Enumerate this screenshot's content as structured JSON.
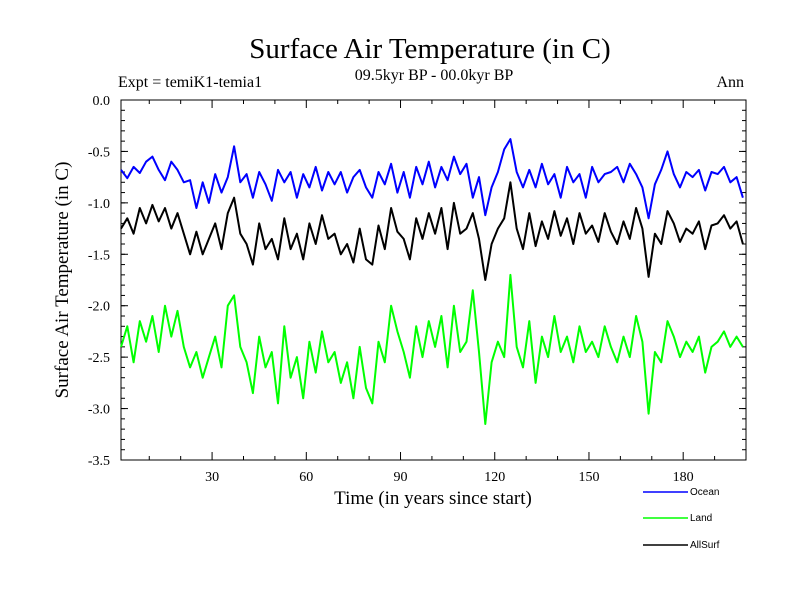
{
  "chart_data": {
    "type": "line",
    "title": "Surface Air Temperature (in C)",
    "subtitle": "09.5kyr BP - 00.0kyr BP",
    "experiment": "Expt = temiK1-temia1",
    "season": "Ann",
    "xlabel": "Time (in years since start)",
    "ylabel": "Surface Air Temperature (in C)",
    "xlim": [
      1,
      200
    ],
    "ylim": [
      -3.5,
      0.0
    ],
    "xticks": [
      30,
      60,
      90,
      120,
      150,
      180
    ],
    "xtick_labels": [
      "30",
      "60",
      "90",
      "120",
      "150",
      "180"
    ],
    "yticks": [
      0.0,
      -0.5,
      -1.0,
      -1.5,
      -2.0,
      -2.5,
      -3.0,
      -3.5
    ],
    "ytick_labels": [
      "0.0",
      "-0.5",
      "-1.0",
      "-1.5",
      "-2.0",
      "-2.5",
      "-3.0",
      "-3.5"
    ],
    "grid": false,
    "legend_position": "bottom-right",
    "series": [
      {
        "name": "Ocean",
        "color": "#0000ff",
        "x": [
          1,
          3,
          5,
          7,
          9,
          11,
          13,
          15,
          17,
          19,
          21,
          23,
          25,
          27,
          29,
          31,
          33,
          35,
          37,
          39,
          41,
          43,
          45,
          47,
          49,
          51,
          53,
          55,
          57,
          59,
          61,
          63,
          65,
          67,
          69,
          71,
          73,
          75,
          77,
          79,
          81,
          83,
          85,
          87,
          89,
          91,
          93,
          95,
          97,
          99,
          101,
          103,
          105,
          107,
          109,
          111,
          113,
          115,
          117,
          119,
          121,
          123,
          125,
          127,
          129,
          131,
          133,
          135,
          137,
          139,
          141,
          143,
          145,
          147,
          149,
          151,
          153,
          155,
          157,
          159,
          161,
          163,
          165,
          167,
          169,
          171,
          173,
          175,
          177,
          179,
          181,
          183,
          185,
          187,
          189,
          191,
          193,
          195,
          197,
          199
        ],
        "values": [
          -0.68,
          -0.76,
          -0.65,
          -0.71,
          -0.6,
          -0.55,
          -0.68,
          -0.78,
          -0.6,
          -0.68,
          -0.8,
          -0.78,
          -1.05,
          -0.8,
          -1.0,
          -0.72,
          -0.9,
          -0.75,
          -0.45,
          -0.8,
          -0.72,
          -0.95,
          -0.7,
          -0.82,
          -0.98,
          -0.68,
          -0.8,
          -0.7,
          -0.95,
          -0.72,
          -0.85,
          -0.65,
          -0.88,
          -0.7,
          -0.82,
          -0.7,
          -0.9,
          -0.75,
          -0.68,
          -0.85,
          -0.95,
          -0.7,
          -0.82,
          -0.62,
          -0.9,
          -0.7,
          -0.95,
          -0.65,
          -0.82,
          -0.6,
          -0.85,
          -0.65,
          -0.78,
          -0.55,
          -0.72,
          -0.62,
          -0.95,
          -0.75,
          -1.12,
          -0.85,
          -0.7,
          -0.48,
          -0.38,
          -0.7,
          -0.85,
          -0.68,
          -0.85,
          -0.62,
          -0.82,
          -0.72,
          -0.95,
          -0.65,
          -0.8,
          -0.72,
          -0.95,
          -0.65,
          -0.8,
          -0.72,
          -0.7,
          -0.65,
          -0.8,
          -0.62,
          -0.72,
          -0.85,
          -1.15,
          -0.82,
          -0.68,
          -0.5,
          -0.72,
          -0.85,
          -0.7,
          -0.75,
          -0.68,
          -0.88,
          -0.7,
          -0.72,
          -0.65,
          -0.8,
          -0.75,
          -0.95
        ]
      },
      {
        "name": "Land",
        "color": "#00ff00",
        "x": [
          1,
          3,
          5,
          7,
          9,
          11,
          13,
          15,
          17,
          19,
          21,
          23,
          25,
          27,
          29,
          31,
          33,
          35,
          37,
          39,
          41,
          43,
          45,
          47,
          49,
          51,
          53,
          55,
          57,
          59,
          61,
          63,
          65,
          67,
          69,
          71,
          73,
          75,
          77,
          79,
          81,
          83,
          85,
          87,
          89,
          91,
          93,
          95,
          97,
          99,
          101,
          103,
          105,
          107,
          109,
          111,
          113,
          115,
          117,
          119,
          121,
          123,
          125,
          127,
          129,
          131,
          133,
          135,
          137,
          139,
          141,
          143,
          145,
          147,
          149,
          151,
          153,
          155,
          157,
          159,
          161,
          163,
          165,
          167,
          169,
          171,
          173,
          175,
          177,
          179,
          181,
          183,
          185,
          187,
          189,
          191,
          193,
          195,
          197,
          199
        ],
        "values": [
          -2.4,
          -2.2,
          -2.55,
          -2.15,
          -2.35,
          -2.1,
          -2.45,
          -2.0,
          -2.3,
          -2.05,
          -2.4,
          -2.6,
          -2.45,
          -2.7,
          -2.5,
          -2.3,
          -2.6,
          -2.0,
          -1.9,
          -2.4,
          -2.55,
          -2.85,
          -2.3,
          -2.6,
          -2.45,
          -2.95,
          -2.2,
          -2.7,
          -2.5,
          -2.9,
          -2.35,
          -2.65,
          -2.25,
          -2.55,
          -2.45,
          -2.75,
          -2.55,
          -2.9,
          -2.4,
          -2.8,
          -2.95,
          -2.35,
          -2.55,
          -2.0,
          -2.25,
          -2.45,
          -2.7,
          -2.2,
          -2.5,
          -2.15,
          -2.4,
          -2.1,
          -2.6,
          -2.0,
          -2.45,
          -2.35,
          -1.85,
          -2.45,
          -3.15,
          -2.55,
          -2.35,
          -2.5,
          -1.7,
          -2.4,
          -2.6,
          -2.15,
          -2.75,
          -2.3,
          -2.5,
          -2.1,
          -2.45,
          -2.3,
          -2.55,
          -2.2,
          -2.45,
          -2.35,
          -2.5,
          -2.2,
          -2.4,
          -2.55,
          -2.3,
          -2.5,
          -2.1,
          -2.35,
          -3.05,
          -2.45,
          -2.55,
          -2.15,
          -2.3,
          -2.5,
          -2.35,
          -2.45,
          -2.3,
          -2.65,
          -2.4,
          -2.35,
          -2.25,
          -2.4,
          -2.3,
          -2.4
        ]
      },
      {
        "name": "AllSurf",
        "color": "#000000",
        "x": [
          1,
          3,
          5,
          7,
          9,
          11,
          13,
          15,
          17,
          19,
          21,
          23,
          25,
          27,
          29,
          31,
          33,
          35,
          37,
          39,
          41,
          43,
          45,
          47,
          49,
          51,
          53,
          55,
          57,
          59,
          61,
          63,
          65,
          67,
          69,
          71,
          73,
          75,
          77,
          79,
          81,
          83,
          85,
          87,
          89,
          91,
          93,
          95,
          97,
          99,
          101,
          103,
          105,
          107,
          109,
          111,
          113,
          115,
          117,
          119,
          121,
          123,
          125,
          127,
          129,
          131,
          133,
          135,
          137,
          139,
          141,
          143,
          145,
          147,
          149,
          151,
          153,
          155,
          157,
          159,
          161,
          163,
          165,
          167,
          169,
          171,
          173,
          175,
          177,
          179,
          181,
          183,
          185,
          187,
          189,
          191,
          193,
          195,
          197,
          199
        ],
        "values": [
          -1.25,
          -1.15,
          -1.3,
          -1.05,
          -1.2,
          -1.02,
          -1.18,
          -1.05,
          -1.25,
          -1.1,
          -1.3,
          -1.5,
          -1.28,
          -1.5,
          -1.35,
          -1.2,
          -1.45,
          -1.1,
          -0.95,
          -1.3,
          -1.4,
          -1.6,
          -1.2,
          -1.45,
          -1.35,
          -1.55,
          -1.15,
          -1.45,
          -1.3,
          -1.55,
          -1.2,
          -1.4,
          -1.12,
          -1.35,
          -1.3,
          -1.5,
          -1.4,
          -1.58,
          -1.25,
          -1.55,
          -1.6,
          -1.22,
          -1.45,
          -1.05,
          -1.28,
          -1.35,
          -1.55,
          -1.15,
          -1.35,
          -1.1,
          -1.3,
          -1.05,
          -1.45,
          -1.0,
          -1.3,
          -1.25,
          -1.1,
          -1.35,
          -1.75,
          -1.4,
          -1.25,
          -1.15,
          -0.8,
          -1.25,
          -1.45,
          -1.1,
          -1.42,
          -1.18,
          -1.35,
          -1.08,
          -1.32,
          -1.15,
          -1.4,
          -1.1,
          -1.3,
          -1.22,
          -1.38,
          -1.1,
          -1.28,
          -1.4,
          -1.18,
          -1.35,
          -1.05,
          -1.25,
          -1.72,
          -1.3,
          -1.4,
          -1.08,
          -1.2,
          -1.38,
          -1.25,
          -1.3,
          -1.18,
          -1.45,
          -1.22,
          -1.2,
          -1.12,
          -1.25,
          -1.18,
          -1.4
        ]
      }
    ]
  }
}
